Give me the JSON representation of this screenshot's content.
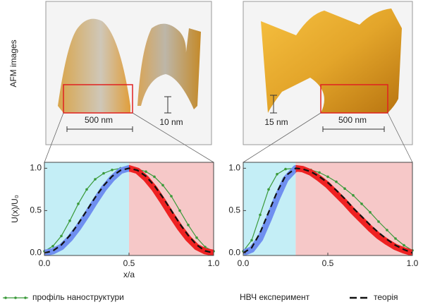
{
  "afm": {
    "label": "AFM images",
    "left": {
      "scale": "500 nm",
      "height": "10 nm"
    },
    "right": {
      "scale": "500 nm",
      "height": "15 nm"
    }
  },
  "chart_data": [
    {
      "type": "line",
      "ylabel": "U(x)/U₀",
      "xlabel": "x/a",
      "xlim": [
        0,
        1
      ],
      "ylim": [
        -0.03,
        1.07
      ],
      "xticks": [
        {
          "value": 0,
          "label": "0.0"
        },
        {
          "value": 0.5,
          "label": "0.5"
        },
        {
          "value": 1,
          "label": "1.0"
        }
      ],
      "yticks": [
        {
          "value": 0,
          "label": "0.0"
        },
        {
          "value": 0.5,
          "label": "0.5"
        },
        {
          "value": 1,
          "label": "1.0"
        }
      ],
      "regions": [
        {
          "xlim": [
            0,
            0.5
          ],
          "color": "#c4eef6"
        },
        {
          "xlim": [
            0.5,
            1
          ],
          "color": "#f6c8c8"
        }
      ],
      "x": [
        0,
        0.05,
        0.1,
        0.15,
        0.2,
        0.25,
        0.3,
        0.35,
        0.4,
        0.45,
        0.5,
        0.55,
        0.6,
        0.65,
        0.7,
        0.75,
        0.8,
        0.85,
        0.9,
        0.95,
        1
      ],
      "series": [
        {
          "name": "профіль наноструктури",
          "color": "#3a9a3a",
          "style": "dots",
          "values": [
            0.02,
            0.08,
            0.2,
            0.38,
            0.58,
            0.75,
            0.87,
            0.94,
            0.98,
            1.0,
            1.0,
            0.99,
            0.96,
            0.9,
            0.8,
            0.67,
            0.5,
            0.33,
            0.18,
            0.07,
            0.02
          ]
        },
        {
          "name": "НВЧ експеримент",
          "colors": [
            "#6f8ff0",
            "#ee2222"
          ],
          "style": "band",
          "values": [
            0,
            0.02,
            0.07,
            0.17,
            0.3,
            0.45,
            0.61,
            0.76,
            0.88,
            0.97,
            1.0,
            0.97,
            0.88,
            0.76,
            0.61,
            0.45,
            0.3,
            0.17,
            0.07,
            0.02,
            0
          ]
        },
        {
          "name": "теорія",
          "color": "#111111",
          "style": "dash",
          "values": [
            0,
            0.024,
            0.095,
            0.206,
            0.345,
            0.5,
            0.655,
            0.794,
            0.905,
            0.976,
            1.0,
            0.976,
            0.905,
            0.794,
            0.655,
            0.5,
            0.345,
            0.206,
            0.095,
            0.024,
            0
          ]
        }
      ]
    },
    {
      "type": "line",
      "xlim": [
        0,
        1
      ],
      "ylim": [
        -0.03,
        1.07
      ],
      "xticks": [
        {
          "value": 0,
          "label": "0.0"
        },
        {
          "value": 0.5,
          "label": "0.5"
        },
        {
          "value": 1,
          "label": "1.0"
        }
      ],
      "yticks": [
        {
          "value": 0,
          "label": "0.0"
        },
        {
          "value": 0.5,
          "label": "0.5"
        },
        {
          "value": 1,
          "label": "1.0"
        }
      ],
      "regions": [
        {
          "xlim": [
            0,
            0.31
          ],
          "color": "#c4eef6"
        },
        {
          "xlim": [
            0.31,
            1
          ],
          "color": "#f6c8c8"
        }
      ],
      "x": [
        0,
        0.05,
        0.1,
        0.15,
        0.2,
        0.25,
        0.31,
        0.35,
        0.4,
        0.45,
        0.5,
        0.55,
        0.6,
        0.65,
        0.7,
        0.75,
        0.8,
        0.85,
        0.9,
        0.95,
        1
      ],
      "series": [
        {
          "name": "профіль наноструктури",
          "color": "#3a9a3a",
          "style": "dots",
          "values": [
            0.02,
            0.15,
            0.45,
            0.75,
            0.93,
            0.99,
            1.0,
            1.0,
            0.98,
            0.95,
            0.9,
            0.84,
            0.76,
            0.68,
            0.58,
            0.48,
            0.37,
            0.27,
            0.17,
            0.09,
            0.03
          ]
        },
        {
          "name": "НВЧ експеримент",
          "colors": [
            "#6f8ff0",
            "#ee2222"
          ],
          "style": "band",
          "values": [
            0,
            0.04,
            0.17,
            0.4,
            0.65,
            0.87,
            1.0,
            0.99,
            0.95,
            0.88,
            0.8,
            0.7,
            0.6,
            0.49,
            0.39,
            0.29,
            0.2,
            0.13,
            0.07,
            0.03,
            0
          ]
        },
        {
          "name": "теорія",
          "color": "#111111",
          "style": "dash",
          "values": [
            0,
            0.062,
            0.24,
            0.48,
            0.72,
            0.91,
            1.0,
            0.992,
            0.96,
            0.9,
            0.83,
            0.74,
            0.64,
            0.53,
            0.43,
            0.33,
            0.24,
            0.16,
            0.09,
            0.04,
            0
          ]
        }
      ]
    }
  ]
}
